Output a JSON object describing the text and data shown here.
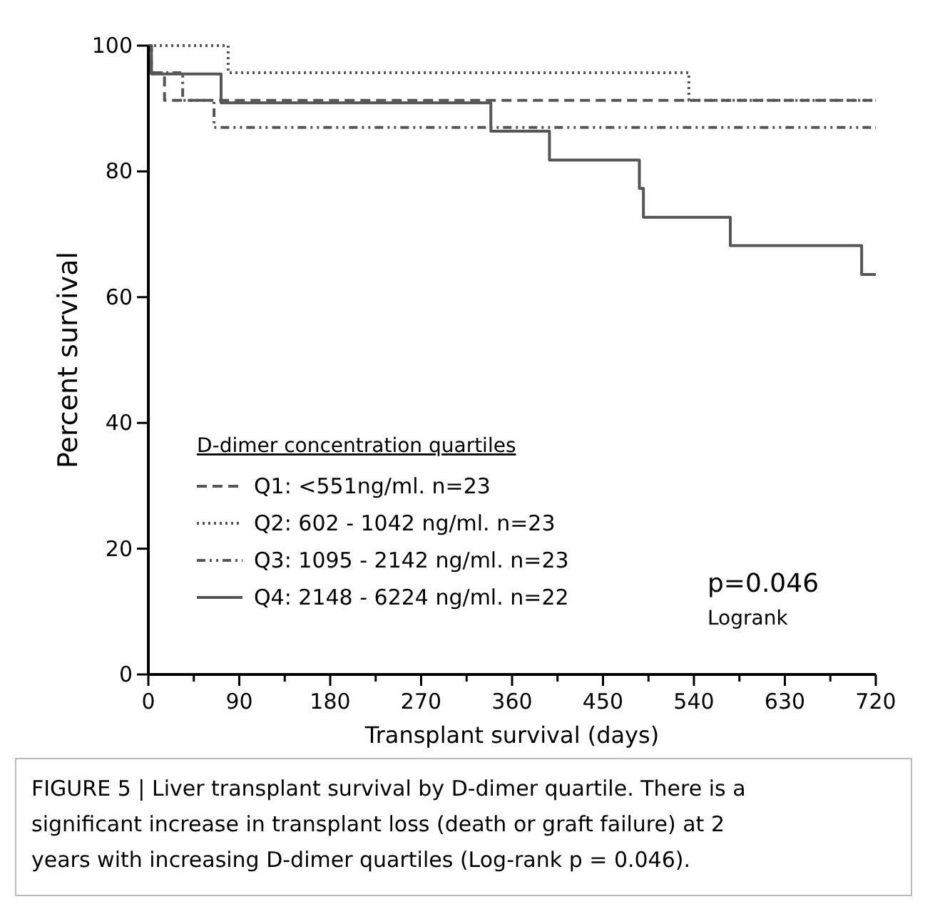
{
  "chart_data": {
    "type": "step",
    "xlabel": "Transplant survival (days)",
    "ylabel": "Percent survival",
    "legend_title": "D-dimer concentration quartiles",
    "legend": "bottom left",
    "grid": false,
    "xlim": [
      0,
      720
    ],
    "xticks": [
      0,
      {
        "value": 45,
        "label": null
      },
      90,
      {
        "value": 135,
        "label": null
      },
      180,
      {
        "value": 225,
        "label": null
      },
      270,
      {
        "value": 315,
        "label": null
      },
      360,
      {
        "value": 405,
        "label": null
      },
      450,
      {
        "value": 495,
        "label": null
      },
      540,
      {
        "value": 585,
        "label": null
      },
      630,
      {
        "value": 675,
        "label": null
      },
      720
    ],
    "ylim": [
      0,
      100
    ],
    "yticks": [
      0,
      20,
      40,
      60,
      80,
      100
    ],
    "series": [
      {
        "name": "Q1: <551ng/ml. n=23",
        "color": "#555555",
        "line_style": "dashed",
        "x": [
          0,
          3,
          16,
          720
        ],
        "values": [
          100,
          95.7,
          91.3,
          91.3
        ]
      },
      {
        "name": "Q2: 602 - 1042 ng/ml. n=23",
        "color": "#555555",
        "line_style": "dotted",
        "x": [
          0,
          79,
          535,
          720
        ],
        "values": [
          100,
          95.7,
          91.3,
          91.3
        ]
      },
      {
        "name": "Q3: 1095 - 2142 ng/ml. n=23",
        "color": "#555555",
        "line_style": "dashdot",
        "x": [
          0,
          3,
          34,
          65,
          720
        ],
        "values": [
          100,
          95.7,
          91.3,
          87,
          87
        ]
      },
      {
        "name": "Q4: 2148 - 6224 ng/ml. n=22",
        "color": "#555555",
        "line_style": "solid",
        "x": [
          0,
          3,
          72,
          339,
          397,
          486,
          490,
          576,
          706,
          720
        ],
        "values": [
          100,
          95.5,
          90.9,
          86.4,
          81.8,
          77.3,
          72.7,
          68.2,
          63.6,
          63.6
        ]
      }
    ],
    "annotations": [
      "p=0.046",
      "Logrank",
      "FIGURE 5 | Liver transplant survival by D-dimer quartile. There is a significant increase in transplant loss (death or graft failure) at 2 years with increasing D-dimer quartiles (Log-rank p = 0.046)."
    ]
  }
}
